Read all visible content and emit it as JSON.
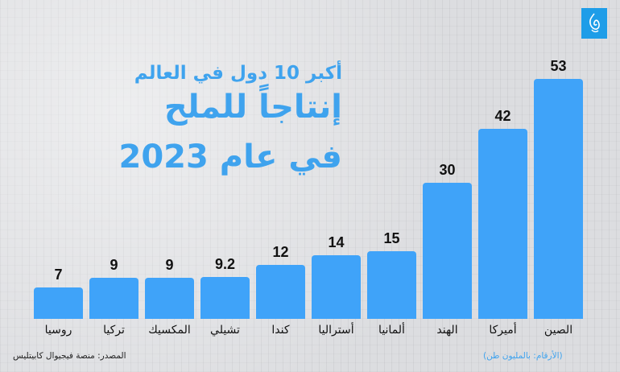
{
  "brand": {
    "logo": "al-jazeera-logo",
    "accent_color": "#1e9de8"
  },
  "header": {
    "line1": "أكبر 10 دول في العالم",
    "line2": "إنتاجاً للملح",
    "line3": "في عام 2023"
  },
  "footer": {
    "source": "المصدر: منصة فيجيوال كابيتليس",
    "unit_note": "(الأرقام: بالمليون طن)"
  },
  "bars": [
    {
      "label": "روسيا",
      "value_text": "7"
    },
    {
      "label": "تركيا",
      "value_text": "9"
    },
    {
      "label": "المكسيك",
      "value_text": "9"
    },
    {
      "label": "تشيلي",
      "value_text": "9.2"
    },
    {
      "label": "كندا",
      "value_text": "12"
    },
    {
      "label": "أستراليا",
      "value_text": "14"
    },
    {
      "label": "ألمانيا",
      "value_text": "15"
    },
    {
      "label": "الهند",
      "value_text": "30"
    },
    {
      "label": "أميركا",
      "value_text": "42"
    },
    {
      "label": "الصين",
      "value_text": "53"
    }
  ],
  "colors": {
    "bar": "#3fa3f9",
    "title": "#3fa3ee",
    "background": "#dcdde0"
  },
  "chart_data": {
    "type": "bar",
    "title": "أكبر 10 دول في العالم إنتاجاً للملح في عام 2023",
    "categories": [
      "روسيا",
      "تركيا",
      "المكسيك",
      "تشيلي",
      "كندا",
      "أستراليا",
      "ألمانيا",
      "الهند",
      "أميركا",
      "الصين"
    ],
    "values": [
      7,
      9,
      9,
      9.2,
      12,
      14,
      15,
      30,
      42,
      53
    ],
    "xlabel": "",
    "ylabel": "(الأرقام: بالمليون طن)",
    "unit": "million tonnes",
    "ylim": [
      0,
      53
    ],
    "grid": false,
    "legend": null,
    "source": "المصدر: منصة فيجيوال كابيتليس"
  }
}
